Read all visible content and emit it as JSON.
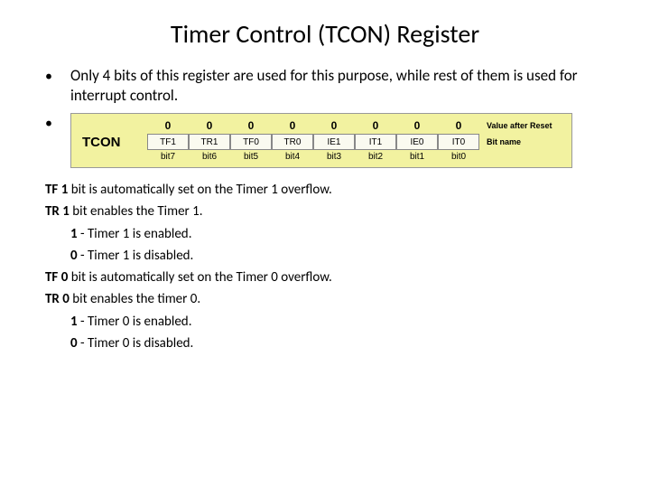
{
  "title": "Timer Control (TCON) Register",
  "bullet1": "Only 4 bits of this register are used for this purpose, while rest of them is used for interrupt control.",
  "diagram": {
    "reg_name": "TCON",
    "bg_color": "#f2f2a0",
    "cell_bg": "#fafaf0",
    "reset_values": [
      "0",
      "0",
      "0",
      "0",
      "0",
      "0",
      "0",
      "0"
    ],
    "bit_names": [
      "TF1",
      "TR1",
      "TF0",
      "TR0",
      "IE1",
      "IT1",
      "IE0",
      "IT0"
    ],
    "bit_nums": [
      "bit7",
      "bit6",
      "bit5",
      "bit4",
      "bit3",
      "bit2",
      "bit1",
      "bit0"
    ],
    "side_label_top": "Value after Reset",
    "side_label_mid": "Bit name"
  },
  "desc": {
    "tf1_b": "TF 1",
    "tf1_t": " bit is automatically set on the Timer 1 overflow.",
    "tr1_b": "TR 1",
    "tr1_t": " bit enables the Timer 1.",
    "tr1_1b": "1",
    "tr1_1t": " - Timer 1 is enabled.",
    "tr1_0b": "0",
    "tr1_0t": " - Timer 1 is disabled.",
    "tf0_b": "TF 0",
    "tf0_t": " bit is automatically set on the Timer 0 overflow.",
    "tr0_b": "TR 0",
    "tr0_t": " bit enables the timer 0.",
    "tr0_1b": "1",
    "tr0_1t": " - Timer 0 is enabled.",
    "tr0_0b": "0",
    "tr0_0t": " - Timer 0 is disabled."
  }
}
